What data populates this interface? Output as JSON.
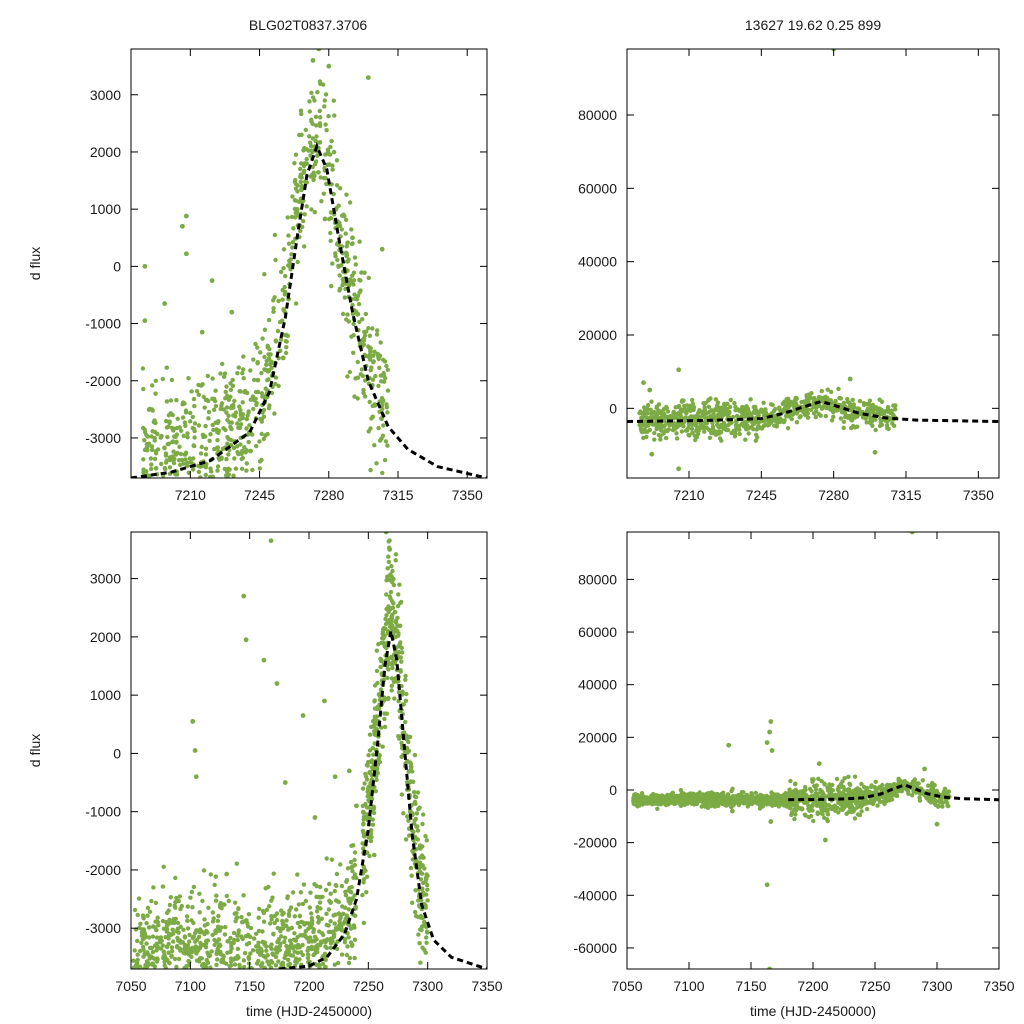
{
  "figure": {
    "title_left": "BLG02T0837.3706",
    "title_right": "13627  19.62  0.25  899"
  },
  "colors": {
    "points": "#7cab45",
    "model": "#000000"
  },
  "chart_data": [
    {
      "id": "top-left",
      "type": "scatter",
      "ylabel": "d flux",
      "xlabel": "",
      "xlim": [
        7180,
        7360
      ],
      "ylim": [
        -3700,
        3800
      ],
      "xticks": [
        7210,
        7245,
        7280,
        7315,
        7350
      ],
      "yticks": [
        -3000,
        -2000,
        -1000,
        0,
        1000,
        2000,
        3000
      ],
      "series": [
        {
          "name": "observations",
          "points": [
            [
              7187,
              0
            ],
            [
              7187,
              -950
            ],
            [
              7197,
              -650
            ],
            [
              7206,
              700
            ],
            [
              7208,
              880
            ],
            [
              7208,
              220
            ],
            [
              7216,
              -1150
            ],
            [
              7221,
              -250
            ],
            [
              7231,
              -800
            ],
            [
              7275,
              3800
            ],
            [
              7272,
              3600
            ],
            [
              7300,
              3300
            ],
            [
              7280,
              3500
            ],
            [
              7292,
              500
            ],
            [
              7307,
              300
            ],
            [
              7257,
              -1600
            ]
          ]
        },
        {
          "name": "model",
          "points": [
            [
              7180,
              -3700
            ],
            [
              7200,
              -3600
            ],
            [
              7220,
              -3400
            ],
            [
              7240,
              -2900
            ],
            [
              7250,
              -2200
            ],
            [
              7258,
              -900
            ],
            [
              7264,
              500
            ],
            [
              7269,
              1600
            ],
            [
              7274,
              2100
            ],
            [
              7279,
              1700
            ],
            [
              7285,
              500
            ],
            [
              7292,
              -800
            ],
            [
              7300,
              -2000
            ],
            [
              7310,
              -2800
            ],
            [
              7320,
              -3200
            ],
            [
              7335,
              -3500
            ],
            [
              7360,
              -3700
            ]
          ]
        }
      ]
    },
    {
      "id": "top-right",
      "type": "scatter",
      "ylabel": "",
      "xlabel": "",
      "xlim": [
        7180,
        7360
      ],
      "ylim": [
        -19000,
        98000
      ],
      "xticks": [
        7210,
        7245,
        7280,
        7315,
        7350
      ],
      "yticks": [
        0,
        20000,
        40000,
        60000,
        80000
      ],
      "series": [
        {
          "name": "observations",
          "points": [
            [
              7280,
              98000
            ],
            [
              7205,
              10500
            ],
            [
              7188,
              7000
            ],
            [
              7191,
              5000
            ],
            [
              7288,
              8000
            ],
            [
              7205,
              -16500
            ],
            [
              7192,
              -12500
            ],
            [
              7300,
              -12000
            ],
            [
              7267,
              3500
            ],
            [
              7273,
              3000
            ]
          ]
        },
        {
          "name": "model",
          "points": [
            [
              7180,
              -3600
            ],
            [
              7220,
              -3300
            ],
            [
              7245,
              -2800
            ],
            [
              7255,
              -1500
            ],
            [
              7265,
              300
            ],
            [
              7274,
              1900
            ],
            [
              7283,
              300
            ],
            [
              7292,
              -1300
            ],
            [
              7305,
              -2600
            ],
            [
              7320,
              -3200
            ],
            [
              7360,
              -3600
            ]
          ]
        }
      ]
    },
    {
      "id": "bottom-left",
      "type": "scatter",
      "ylabel": "d flux",
      "xlabel": "time (HJD-2450000)",
      "xlim": [
        7050,
        7350
      ],
      "ylim": [
        -3700,
        3800
      ],
      "xticks": [
        7050,
        7100,
        7150,
        7200,
        7250,
        7300,
        7350
      ],
      "yticks": [
        -3000,
        -2000,
        -1000,
        0,
        1000,
        2000,
        3000
      ],
      "series": [
        {
          "name": "observations",
          "points": [
            [
              7168,
              3650
            ],
            [
              7145,
              2700
            ],
            [
              7147,
              1950
            ],
            [
              7162,
              1600
            ],
            [
              7173,
              1200
            ],
            [
              7102,
              550
            ],
            [
              7104,
              50
            ],
            [
              7105,
              -400
            ],
            [
              7195,
              650
            ],
            [
              7213,
              900
            ],
            [
              7180,
              -500
            ],
            [
              7234,
              -300
            ],
            [
              7240,
              -900
            ],
            [
              7205,
              -1100
            ],
            [
              7222,
              -400
            ],
            [
              7265,
              3800
            ],
            [
              7268,
              3500
            ]
          ]
        },
        {
          "name": "model",
          "points": [
            [
              7175,
              -3700
            ],
            [
              7200,
              -3650
            ],
            [
              7215,
              -3500
            ],
            [
              7230,
              -3100
            ],
            [
              7240,
              -2500
            ],
            [
              7250,
              -1300
            ],
            [
              7258,
              200
            ],
            [
              7264,
              1500
            ],
            [
              7269,
              2100
            ],
            [
              7274,
              1600
            ],
            [
              7280,
              200
            ],
            [
              7287,
              -1400
            ],
            [
              7295,
              -2600
            ],
            [
              7305,
              -3200
            ],
            [
              7320,
              -3500
            ],
            [
              7350,
              -3700
            ]
          ]
        }
      ]
    },
    {
      "id": "bottom-right",
      "type": "scatter",
      "ylabel": "",
      "xlabel": "time (HJD-2450000)",
      "xlim": [
        7050,
        7350
      ],
      "ylim": [
        -68000,
        98000
      ],
      "xticks": [
        7050,
        7100,
        7150,
        7200,
        7250,
        7300,
        7350
      ],
      "yticks": [
        -60000,
        -40000,
        -20000,
        0,
        20000,
        40000,
        60000,
        80000
      ],
      "series": [
        {
          "name": "observations",
          "points": [
            [
              7280,
              98000
            ],
            [
              7166,
              26000
            ],
            [
              7165,
              22000
            ],
            [
              7163,
              18000
            ],
            [
              7132,
              17000
            ],
            [
              7167,
              15000
            ],
            [
              7135,
              -8000
            ],
            [
              7166,
              -12000
            ],
            [
              7163,
              -36000
            ],
            [
              7165,
              -68000
            ],
            [
              7205,
              10000
            ],
            [
              7210,
              -19000
            ],
            [
              7300,
              -13000
            ],
            [
              7290,
              8000
            ],
            [
              7270,
              3500
            ]
          ]
        },
        {
          "name": "model",
          "points": [
            [
              7180,
              -3700
            ],
            [
              7220,
              -3500
            ],
            [
              7240,
              -3000
            ],
            [
              7255,
              -1500
            ],
            [
              7265,
              500
            ],
            [
              7274,
              1900
            ],
            [
              7283,
              300
            ],
            [
              7292,
              -1400
            ],
            [
              7305,
              -2700
            ],
            [
              7320,
              -3300
            ],
            [
              7350,
              -3700
            ]
          ]
        }
      ]
    }
  ]
}
